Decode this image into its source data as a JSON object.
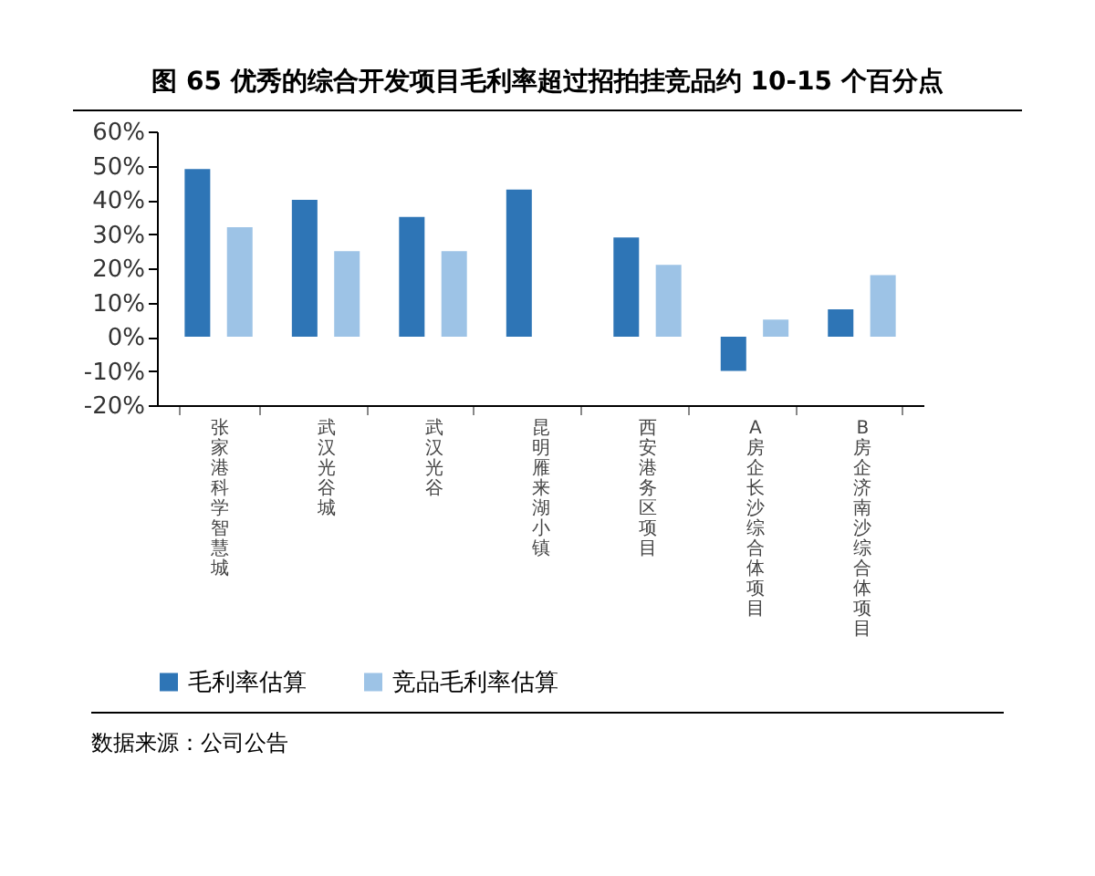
{
  "chart_data": {
    "type": "bar",
    "title": "图 65 优秀的综合开发项目毛利率超过招拍挂竞品约 10-15 个百分点",
    "categories": [
      "张家港科学智慧城",
      "武汉光谷城",
      "武汉光谷",
      "昆明雁来湖小镇",
      "西安港务区项目",
      "A房企长沙综合体项目",
      "B房企济南沙综合体项目"
    ],
    "series": [
      {
        "name": "毛利率估算",
        "color": "#2e75b6",
        "values": [
          49,
          40,
          35,
          43,
          29,
          -10,
          8
        ]
      },
      {
        "name": "竞品毛利率估算",
        "color": "#9dc3e6",
        "values": [
          32,
          25,
          25,
          null,
          21,
          5,
          18
        ]
      }
    ],
    "ylim": [
      -20,
      60
    ],
    "yticks": [
      {
        "value": -20,
        "label": "-20%"
      },
      {
        "value": -10,
        "label": "-10%"
      },
      {
        "value": 0,
        "label": "0%"
      },
      {
        "value": 10,
        "label": "10%"
      },
      {
        "value": 20,
        "label": "20%"
      },
      {
        "value": 30,
        "label": "30%"
      },
      {
        "value": 40,
        "label": "40%"
      },
      {
        "value": 50,
        "label": "50%"
      },
      {
        "value": 60,
        "label": "60%"
      }
    ],
    "grid": false,
    "legend": "bottom",
    "annotations": [
      "数据来源：公司公告"
    ]
  }
}
